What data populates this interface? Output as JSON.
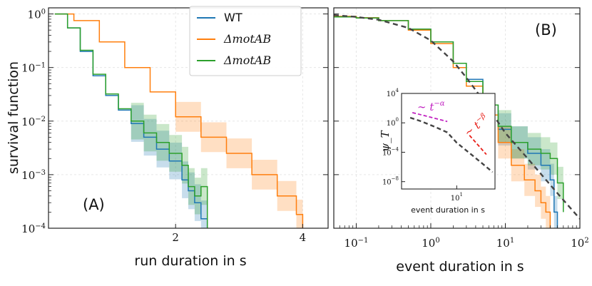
{
  "chart_data": [
    {
      "type": "line",
      "panel_label": "(A)",
      "xlabel": "run duration in s",
      "ylabel": "survival function",
      "xscale": "linear",
      "yscale": "log",
      "xlim": [
        0,
        4.4
      ],
      "ylim": [
        0.0001,
        1.3
      ],
      "x_ticks": [
        {
          "value": 2,
          "label": "2"
        },
        {
          "value": 4,
          "label": "4"
        }
      ],
      "y_ticks": [
        {
          "value": 1,
          "label": "10^0",
          "base": "10",
          "exp": "0"
        },
        {
          "value": 0.1,
          "label": "10^-1",
          "base": "10",
          "exp": "−1"
        },
        {
          "value": 0.01,
          "label": "10^-2",
          "base": "10",
          "exp": "−2"
        },
        {
          "value": 0.001,
          "label": "10^-3",
          "base": "10",
          "exp": "−3"
        },
        {
          "value": 0.0001,
          "label": "10^-4",
          "base": "10",
          "exp": "−4"
        }
      ],
      "grid": true,
      "legend_position": "top-right",
      "series": [
        {
          "name": "WT",
          "color": "#1f77b4",
          "x": [
            0.1,
            0.3,
            0.5,
            0.7,
            0.9,
            1.1,
            1.3,
            1.5,
            1.7,
            1.9,
            2.1,
            2.2,
            2.3,
            2.4,
            2.5
          ],
          "y": [
            1.0,
            0.55,
            0.2,
            0.07,
            0.03,
            0.016,
            0.009,
            0.005,
            0.003,
            0.0018,
            0.0008,
            0.0005,
            0.0003,
            0.00015,
            0.0001
          ]
        },
        {
          "name": "ΔmotAB",
          "color": "#ff7f0e",
          "x": [
            0.1,
            0.4,
            0.8,
            1.2,
            1.6,
            2.0,
            2.4,
            2.8,
            3.2,
            3.6,
            3.9,
            4.0
          ],
          "y": [
            1.0,
            0.75,
            0.3,
            0.1,
            0.035,
            0.012,
            0.005,
            0.0025,
            0.001,
            0.0004,
            0.00018,
            0.0001
          ]
        },
        {
          "name": "ΔmotAB",
          "color": "#2ca02c",
          "x": [
            0.1,
            0.3,
            0.5,
            0.7,
            0.9,
            1.1,
            1.3,
            1.5,
            1.7,
            1.9,
            2.1,
            2.2,
            2.3,
            2.4,
            2.5
          ],
          "y": [
            1.0,
            0.55,
            0.21,
            0.075,
            0.032,
            0.017,
            0.01,
            0.006,
            0.004,
            0.0025,
            0.0015,
            0.0006,
            0.0004,
            0.0006,
            0.0001
          ]
        }
      ]
    },
    {
      "type": "line",
      "panel_label": "(B)",
      "xlabel": "event duration in s",
      "xscale": "log",
      "yscale": "log",
      "xlim": [
        0.05,
        100
      ],
      "ylim": [
        0.0001,
        1.3
      ],
      "x_ticks": [
        {
          "value": 0.1,
          "label": "10^-1",
          "base": "10",
          "exp": "−1"
        },
        {
          "value": 1,
          "label": "10^0",
          "base": "10",
          "exp": "0"
        },
        {
          "value": 10,
          "label": "10^1",
          "base": "10",
          "exp": "1"
        },
        {
          "value": 100,
          "label": "10^2",
          "base": "10",
          "exp": "2"
        }
      ],
      "grid": true,
      "series": [
        {
          "color": "#1f77b4",
          "x": [
            0.05,
            0.1,
            0.2,
            0.5,
            1,
            2,
            3,
            5,
            8,
            12,
            20,
            30,
            40,
            45,
            50
          ],
          "y": [
            0.9,
            0.85,
            0.75,
            0.52,
            0.3,
            0.12,
            0.06,
            0.02,
            0.007,
            0.004,
            0.0025,
            0.0015,
            0.0008,
            0.0002,
            0.0001
          ]
        },
        {
          "color": "#ff7f0e",
          "x": [
            0.05,
            0.1,
            0.2,
            0.5,
            1,
            2,
            3,
            5,
            8,
            12,
            18,
            25,
            30,
            35,
            40
          ],
          "y": [
            0.9,
            0.85,
            0.75,
            0.5,
            0.28,
            0.1,
            0.045,
            0.013,
            0.004,
            0.0015,
            0.0008,
            0.0005,
            0.0003,
            0.0002,
            0.0001
          ]
        },
        {
          "color": "#2ca02c",
          "x": [
            0.05,
            0.1,
            0.2,
            0.5,
            1,
            2,
            3,
            5,
            8,
            12,
            20,
            30,
            40,
            50,
            60
          ],
          "y": [
            0.88,
            0.84,
            0.75,
            0.52,
            0.3,
            0.12,
            0.055,
            0.02,
            0.008,
            0.004,
            0.003,
            0.0025,
            0.002,
            0.0007,
            0.0002
          ]
        },
        {
          "color": "#444444",
          "dashed": true,
          "x": [
            0.05,
            0.1,
            0.2,
            0.5,
            1,
            2,
            3,
            5,
            10,
            20,
            50,
            100
          ],
          "y": [
            0.95,
            0.88,
            0.78,
            0.55,
            0.32,
            0.13,
            0.065,
            0.025,
            0.006,
            0.002,
            0.00045,
            0.00015
          ]
        }
      ],
      "inset": {
        "xlabel": "event duration in s",
        "ylabel": "ψ_T",
        "xscale": "log",
        "yscale": "log",
        "xlim": [
          0.5,
          80
        ],
        "ylim": [
          1e-09,
          10000
        ],
        "x_ticks": [
          {
            "value": 10,
            "label": "10^1",
            "base": "10",
            "exp": "1"
          }
        ],
        "y_ticks": [
          {
            "value": 10000,
            "label": "10^4",
            "base": "10",
            "exp": "4"
          },
          {
            "value": 1,
            "label": "10^0",
            "base": "10",
            "exp": "0"
          },
          {
            "value": 0.0001,
            "label": "10^-4",
            "base": "10",
            "exp": "−4"
          },
          {
            "value": 1e-08,
            "label": "10^-8",
            "base": "10",
            "exp": "−8"
          }
        ],
        "series": [
          {
            "color": "#444444",
            "dashed": true,
            "x": [
              0.8,
              1.5,
              3,
              6,
              10,
              20,
              40,
              70
            ],
            "y": [
              5,
              1.5,
              0.3,
              0.05,
              0.002,
              8e-05,
              3e-06,
              2e-07
            ]
          }
        ],
        "annotations": [
          {
            "text_base": "∼ t",
            "text_exp": "−α",
            "color": "#c020c0",
            "x1": 0.9,
            "y1": 25,
            "x2": 6,
            "y2": 1.5
          },
          {
            "text_base": "∼ t",
            "text_exp": "−β",
            "color": "#e8201a",
            "x1": 20,
            "y1": 0.02,
            "x2": 50,
            "y2": 5e-05
          }
        ]
      }
    }
  ]
}
